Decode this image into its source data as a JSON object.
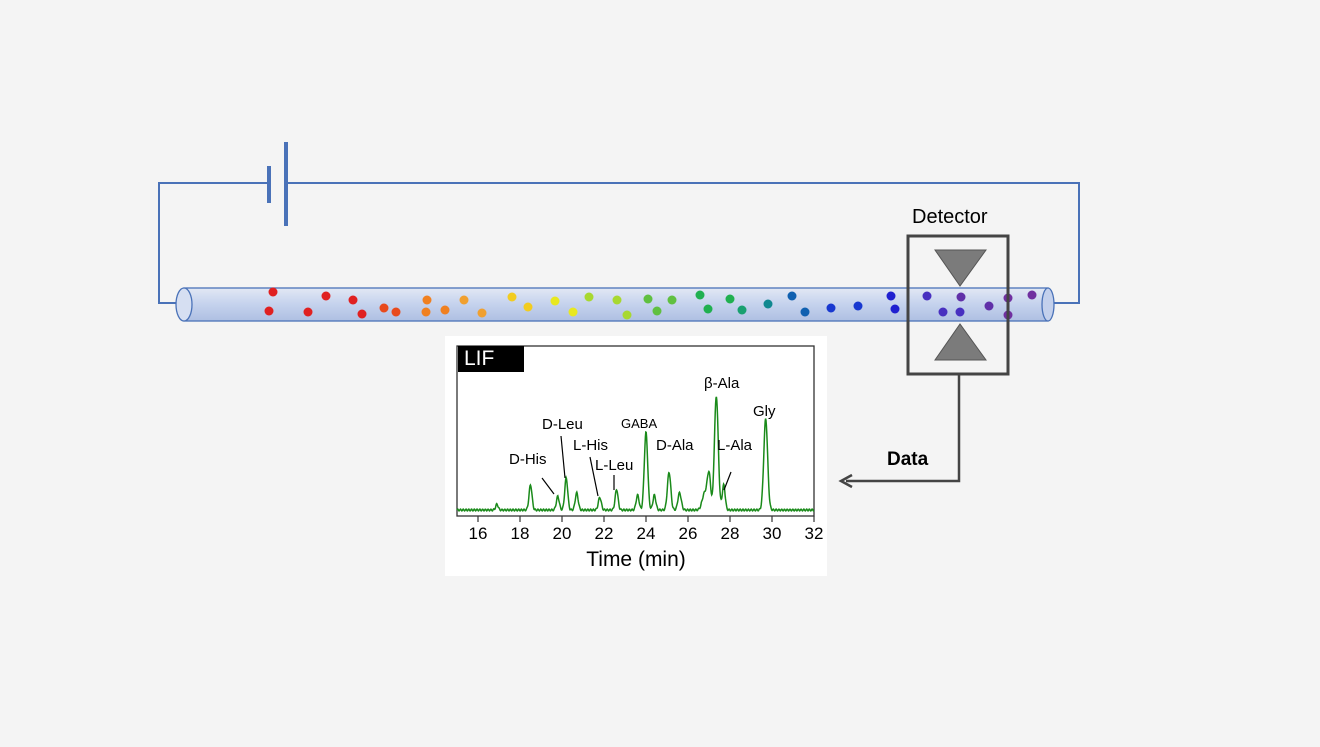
{
  "detector": {
    "label": "Detector"
  },
  "data_arrow": {
    "label": "Data"
  },
  "capillary": {
    "particle_colors": [
      "#e02020",
      "#e84a1c",
      "#f08020",
      "#f0a030",
      "#f2cc20",
      "#e8e820",
      "#a8d830",
      "#60c040",
      "#20b050",
      "#18a070",
      "#108890",
      "#1060b0",
      "#1838d0",
      "#2020d0",
      "#4830c0",
      "#6030a8",
      "#7030a0"
    ]
  },
  "chart_data": {
    "type": "line",
    "badge": "LIF",
    "xlabel": "Time (min)",
    "ylabel": "",
    "xlim": [
      15,
      32
    ],
    "x_ticks": [
      16,
      18,
      20,
      22,
      24,
      26,
      28,
      30,
      32
    ],
    "series": [
      {
        "color": "#1a8a1a",
        "peaks": [
          {
            "x": 16.9,
            "h": 0.05,
            "w": 0.06
          },
          {
            "x": 18.5,
            "h": 0.22,
            "w": 0.07
          },
          {
            "x": 19.8,
            "h": 0.12,
            "w": 0.07
          },
          {
            "x": 20.2,
            "h": 0.28,
            "w": 0.07
          },
          {
            "x": 20.7,
            "h": 0.15,
            "w": 0.07
          },
          {
            "x": 21.8,
            "h": 0.11,
            "w": 0.07
          },
          {
            "x": 22.6,
            "h": 0.18,
            "w": 0.07
          },
          {
            "x": 23.6,
            "h": 0.13,
            "w": 0.07
          },
          {
            "x": 24.0,
            "h": 0.68,
            "w": 0.08
          },
          {
            "x": 24.4,
            "h": 0.13,
            "w": 0.07
          },
          {
            "x": 25.1,
            "h": 0.33,
            "w": 0.08
          },
          {
            "x": 25.6,
            "h": 0.15,
            "w": 0.08
          },
          {
            "x": 26.8,
            "h": 0.15,
            "w": 0.12
          },
          {
            "x": 27.0,
            "h": 0.3,
            "w": 0.08
          },
          {
            "x": 27.35,
            "h": 1.0,
            "w": 0.09
          },
          {
            "x": 27.7,
            "h": 0.22,
            "w": 0.07
          },
          {
            "x": 29.7,
            "h": 0.8,
            "w": 0.09
          }
        ]
      }
    ],
    "annotations": [
      {
        "text": "D-His",
        "x": 19.8
      },
      {
        "text": "D-Leu",
        "x": 20.2
      },
      {
        "text": "L-His",
        "x": 21.8
      },
      {
        "text": "L-Leu",
        "x": 22.6
      },
      {
        "text": "GABA",
        "x": 24.0
      },
      {
        "text": "D-Ala",
        "x": 25.1
      },
      {
        "text": "β-Ala",
        "x": 27.35
      },
      {
        "text": "L-Ala",
        "x": 27.7
      },
      {
        "text": "Gly",
        "x": 29.7
      }
    ]
  }
}
